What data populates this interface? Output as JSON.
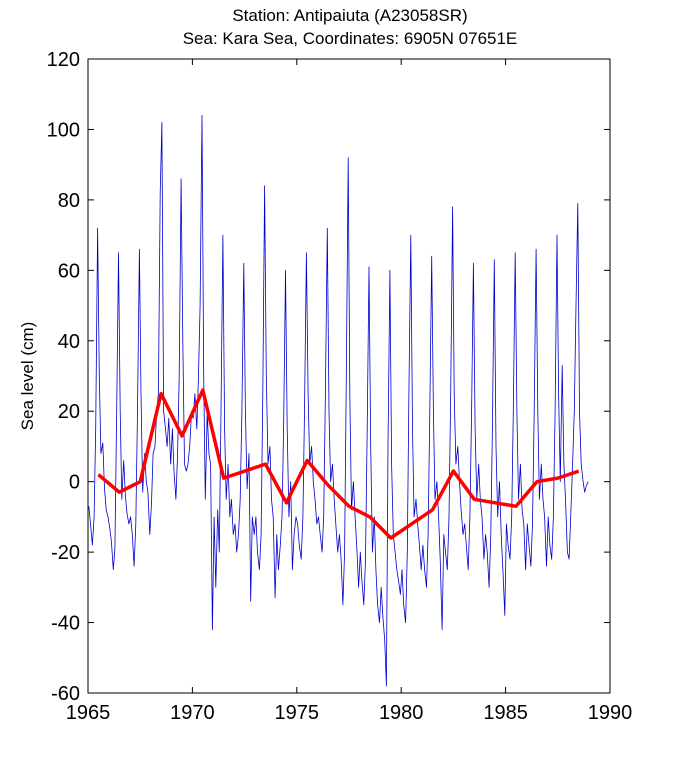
{
  "chart_data": {
    "type": "line",
    "title": "Station: Antipaiuta (A23058SR)",
    "subtitle": "Sea: Kara Sea, Coordinates: 6905N 07651E",
    "xlabel": "",
    "ylabel": "Sea level (cm)",
    "xlim": [
      1965,
      1990
    ],
    "ylim": [
      -60,
      120
    ],
    "xticks": [
      1965,
      1970,
      1975,
      1980,
      1985,
      1990
    ],
    "yticks": [
      -60,
      -40,
      -20,
      0,
      20,
      40,
      60,
      80,
      100,
      120
    ],
    "grid": false,
    "legend": "none",
    "series": [
      {
        "color": "#0000cc",
        "style": "thin",
        "points": [
          [
            1965.04,
            -7
          ],
          [
            1965.12,
            -12
          ],
          [
            1965.21,
            -18
          ],
          [
            1965.29,
            -10
          ],
          [
            1965.37,
            15
          ],
          [
            1965.46,
            72
          ],
          [
            1965.54,
            30
          ],
          [
            1965.62,
            8
          ],
          [
            1965.71,
            11
          ],
          [
            1965.79,
            -2
          ],
          [
            1965.87,
            -8
          ],
          [
            1965.96,
            -10
          ],
          [
            1966.04,
            -13
          ],
          [
            1966.12,
            -17
          ],
          [
            1966.21,
            -25
          ],
          [
            1966.29,
            -19
          ],
          [
            1966.37,
            18
          ],
          [
            1966.46,
            65
          ],
          [
            1966.54,
            20
          ],
          [
            1966.62,
            -5
          ],
          [
            1966.71,
            6
          ],
          [
            1966.79,
            -4
          ],
          [
            1966.87,
            -9
          ],
          [
            1966.96,
            -12
          ],
          [
            1967.04,
            -10
          ],
          [
            1967.12,
            -15
          ],
          [
            1967.21,
            -24
          ],
          [
            1967.29,
            -12
          ],
          [
            1967.37,
            20
          ],
          [
            1967.46,
            66
          ],
          [
            1967.54,
            25
          ],
          [
            1967.62,
            -3
          ],
          [
            1967.71,
            8
          ],
          [
            1967.79,
            0
          ],
          [
            1967.87,
            -3
          ],
          [
            1967.96,
            -15
          ],
          [
            1968.04,
            -6
          ],
          [
            1968.12,
            8
          ],
          [
            1968.21,
            10
          ],
          [
            1968.29,
            20
          ],
          [
            1968.37,
            25
          ],
          [
            1968.46,
            82
          ],
          [
            1968.54,
            102
          ],
          [
            1968.62,
            20
          ],
          [
            1968.71,
            15
          ],
          [
            1968.79,
            10
          ],
          [
            1968.87,
            18
          ],
          [
            1968.96,
            5
          ],
          [
            1969.04,
            15
          ],
          [
            1969.12,
            3
          ],
          [
            1969.21,
            -5
          ],
          [
            1969.29,
            8
          ],
          [
            1969.37,
            30
          ],
          [
            1969.46,
            86
          ],
          [
            1969.54,
            40
          ],
          [
            1969.62,
            5
          ],
          [
            1969.71,
            3
          ],
          [
            1969.79,
            5
          ],
          [
            1969.87,
            10
          ],
          [
            1969.96,
            20
          ],
          [
            1970.04,
            18
          ],
          [
            1970.12,
            25
          ],
          [
            1970.21,
            15
          ],
          [
            1970.29,
            30
          ],
          [
            1970.37,
            50
          ],
          [
            1970.46,
            104
          ],
          [
            1970.54,
            30
          ],
          [
            1970.62,
            -5
          ],
          [
            1970.71,
            20
          ],
          [
            1970.79,
            8
          ],
          [
            1970.87,
            5
          ],
          [
            1970.96,
            -42
          ],
          [
            1971.04,
            -10
          ],
          [
            1971.12,
            -30
          ],
          [
            1971.21,
            -8
          ],
          [
            1971.29,
            -20
          ],
          [
            1971.37,
            20
          ],
          [
            1971.46,
            70
          ],
          [
            1971.54,
            15
          ],
          [
            1971.62,
            -5
          ],
          [
            1971.71,
            5
          ],
          [
            1971.79,
            -10
          ],
          [
            1971.87,
            -5
          ],
          [
            1971.96,
            -15
          ],
          [
            1972.04,
            -12
          ],
          [
            1972.12,
            -20
          ],
          [
            1972.21,
            -15
          ],
          [
            1972.29,
            -5
          ],
          [
            1972.37,
            20
          ],
          [
            1972.46,
            62
          ],
          [
            1972.54,
            20
          ],
          [
            1972.62,
            -2
          ],
          [
            1972.71,
            8
          ],
          [
            1972.79,
            -34
          ],
          [
            1972.87,
            -10
          ],
          [
            1972.96,
            -15
          ],
          [
            1973.04,
            -10
          ],
          [
            1973.12,
            -20
          ],
          [
            1973.21,
            -25
          ],
          [
            1973.29,
            -15
          ],
          [
            1973.37,
            25
          ],
          [
            1973.46,
            84
          ],
          [
            1973.54,
            30
          ],
          [
            1973.62,
            5
          ],
          [
            1973.71,
            10
          ],
          [
            1973.79,
            -5
          ],
          [
            1973.87,
            -10
          ],
          [
            1973.96,
            -33
          ],
          [
            1974.04,
            -15
          ],
          [
            1974.12,
            -25
          ],
          [
            1974.21,
            -18
          ],
          [
            1974.29,
            -10
          ],
          [
            1974.37,
            15
          ],
          [
            1974.46,
            60
          ],
          [
            1974.54,
            15
          ],
          [
            1974.62,
            -10
          ],
          [
            1974.71,
            0
          ],
          [
            1974.79,
            -25
          ],
          [
            1974.87,
            -15
          ],
          [
            1974.96,
            -10
          ],
          [
            1975.04,
            -12
          ],
          [
            1975.12,
            -18
          ],
          [
            1975.21,
            -22
          ],
          [
            1975.29,
            -10
          ],
          [
            1975.37,
            20
          ],
          [
            1975.46,
            65
          ],
          [
            1975.54,
            25
          ],
          [
            1975.62,
            5
          ],
          [
            1975.71,
            10
          ],
          [
            1975.79,
            0
          ],
          [
            1975.87,
            -5
          ],
          [
            1975.96,
            -12
          ],
          [
            1976.04,
            -10
          ],
          [
            1976.12,
            -15
          ],
          [
            1976.21,
            -20
          ],
          [
            1976.29,
            -10
          ],
          [
            1976.37,
            25
          ],
          [
            1976.46,
            72
          ],
          [
            1976.54,
            20
          ],
          [
            1976.62,
            0
          ],
          [
            1976.71,
            5
          ],
          [
            1976.79,
            -5
          ],
          [
            1976.87,
            -12
          ],
          [
            1976.96,
            -20
          ],
          [
            1977.04,
            -15
          ],
          [
            1977.12,
            -22
          ],
          [
            1977.21,
            -35
          ],
          [
            1977.29,
            -20
          ],
          [
            1977.37,
            30
          ],
          [
            1977.46,
            92
          ],
          [
            1977.54,
            25
          ],
          [
            1977.62,
            -8
          ],
          [
            1977.71,
            0
          ],
          [
            1977.79,
            -10
          ],
          [
            1977.87,
            -18
          ],
          [
            1977.96,
            -30
          ],
          [
            1978.04,
            -20
          ],
          [
            1978.12,
            -28
          ],
          [
            1978.21,
            -35
          ],
          [
            1978.29,
            -22
          ],
          [
            1978.37,
            15
          ],
          [
            1978.46,
            61
          ],
          [
            1978.54,
            10
          ],
          [
            1978.62,
            -20
          ],
          [
            1978.71,
            -10
          ],
          [
            1978.79,
            -25
          ],
          [
            1978.87,
            -35
          ],
          [
            1978.96,
            -40
          ],
          [
            1979.04,
            -30
          ],
          [
            1979.12,
            -38
          ],
          [
            1979.21,
            -45
          ],
          [
            1979.29,
            -58
          ],
          [
            1979.37,
            10
          ],
          [
            1979.46,
            60
          ],
          [
            1979.54,
            5
          ],
          [
            1979.62,
            -15
          ],
          [
            1979.71,
            -20
          ],
          [
            1979.79,
            -25
          ],
          [
            1979.87,
            -28
          ],
          [
            1979.96,
            -32
          ],
          [
            1980.04,
            -25
          ],
          [
            1980.12,
            -35
          ],
          [
            1980.21,
            -40
          ],
          [
            1980.29,
            -20
          ],
          [
            1980.37,
            25
          ],
          [
            1980.46,
            70
          ],
          [
            1980.54,
            15
          ],
          [
            1980.62,
            -10
          ],
          [
            1980.71,
            -5
          ],
          [
            1980.79,
            -12
          ],
          [
            1980.87,
            -18
          ],
          [
            1980.96,
            -25
          ],
          [
            1981.04,
            -18
          ],
          [
            1981.12,
            -25
          ],
          [
            1981.21,
            -30
          ],
          [
            1981.29,
            -15
          ],
          [
            1981.37,
            20
          ],
          [
            1981.46,
            64
          ],
          [
            1981.54,
            20
          ],
          [
            1981.62,
            -5
          ],
          [
            1981.71,
            0
          ],
          [
            1981.79,
            -10
          ],
          [
            1981.87,
            -22
          ],
          [
            1981.96,
            -42
          ],
          [
            1982.04,
            -15
          ],
          [
            1982.12,
            -20
          ],
          [
            1982.21,
            -25
          ],
          [
            1982.29,
            -10
          ],
          [
            1982.37,
            25
          ],
          [
            1982.46,
            78
          ],
          [
            1982.54,
            25
          ],
          [
            1982.62,
            5
          ],
          [
            1982.71,
            10
          ],
          [
            1982.79,
            0
          ],
          [
            1982.87,
            -8
          ],
          [
            1982.96,
            -15
          ],
          [
            1983.04,
            -12
          ],
          [
            1983.12,
            -18
          ],
          [
            1983.21,
            -25
          ],
          [
            1983.29,
            -10
          ],
          [
            1983.37,
            20
          ],
          [
            1983.46,
            62
          ],
          [
            1983.54,
            15
          ],
          [
            1983.62,
            -5
          ],
          [
            1983.71,
            5
          ],
          [
            1983.79,
            -5
          ],
          [
            1983.87,
            -10
          ],
          [
            1983.96,
            -22
          ],
          [
            1984.04,
            -15
          ],
          [
            1984.12,
            -20
          ],
          [
            1984.21,
            -30
          ],
          [
            1984.29,
            -15
          ],
          [
            1984.37,
            15
          ],
          [
            1984.46,
            63
          ],
          [
            1984.54,
            10
          ],
          [
            1984.62,
            -10
          ],
          [
            1984.71,
            0
          ],
          [
            1984.79,
            -15
          ],
          [
            1984.87,
            -25
          ],
          [
            1984.96,
            -38
          ],
          [
            1985.04,
            -12
          ],
          [
            1985.12,
            -18
          ],
          [
            1985.21,
            -22
          ],
          [
            1985.29,
            -10
          ],
          [
            1985.37,
            20
          ],
          [
            1985.46,
            65
          ],
          [
            1985.54,
            20
          ],
          [
            1985.62,
            -5
          ],
          [
            1985.71,
            5
          ],
          [
            1985.79,
            -8
          ],
          [
            1985.87,
            -12
          ],
          [
            1985.96,
            -25
          ],
          [
            1986.04,
            -12
          ],
          [
            1986.12,
            -18
          ],
          [
            1986.21,
            -24
          ],
          [
            1986.29,
            -12
          ],
          [
            1986.37,
            20
          ],
          [
            1986.46,
            66
          ],
          [
            1986.54,
            20
          ],
          [
            1986.62,
            -5
          ],
          [
            1986.71,
            5
          ],
          [
            1986.79,
            -5
          ],
          [
            1986.87,
            -10
          ],
          [
            1986.96,
            -24
          ],
          [
            1987.04,
            -10
          ],
          [
            1987.12,
            -18
          ],
          [
            1987.21,
            -22
          ],
          [
            1987.29,
            -10
          ],
          [
            1987.37,
            20
          ],
          [
            1987.46,
            70
          ],
          [
            1987.54,
            25
          ],
          [
            1987.62,
            0
          ],
          [
            1987.71,
            33
          ],
          [
            1987.79,
            5
          ],
          [
            1987.87,
            -5
          ],
          [
            1987.96,
            -20
          ],
          [
            1988.04,
            -22
          ],
          [
            1988.12,
            -10
          ],
          [
            1988.21,
            5
          ],
          [
            1988.29,
            20
          ],
          [
            1988.37,
            50
          ],
          [
            1988.46,
            79
          ],
          [
            1988.54,
            20
          ],
          [
            1988.62,
            5
          ],
          [
            1988.71,
            0
          ],
          [
            1988.79,
            -3
          ],
          [
            1988.87,
            -1
          ],
          [
            1988.96,
            0
          ]
        ]
      },
      {
        "color": "#ff0000",
        "style": "thick",
        "points": [
          [
            1965.5,
            2
          ],
          [
            1966.5,
            -3
          ],
          [
            1967.5,
            0
          ],
          [
            1968.5,
            25
          ],
          [
            1969.5,
            13
          ],
          [
            1970.5,
            26
          ],
          [
            1971.5,
            1
          ],
          [
            1972.5,
            3
          ],
          [
            1973.5,
            5
          ],
          [
            1974.5,
            -6
          ],
          [
            1975.5,
            6
          ],
          [
            1976.5,
            -1
          ],
          [
            1977.5,
            -7
          ],
          [
            1978.5,
            -10
          ],
          [
            1979.5,
            -16
          ],
          [
            1980.5,
            -12
          ],
          [
            1981.5,
            -8
          ],
          [
            1982.5,
            3
          ],
          [
            1983.5,
            -5
          ],
          [
            1984.5,
            -6
          ],
          [
            1985.5,
            -7
          ],
          [
            1986.5,
            0
          ],
          [
            1987.5,
            1
          ],
          [
            1988.5,
            3
          ]
        ]
      }
    ]
  }
}
